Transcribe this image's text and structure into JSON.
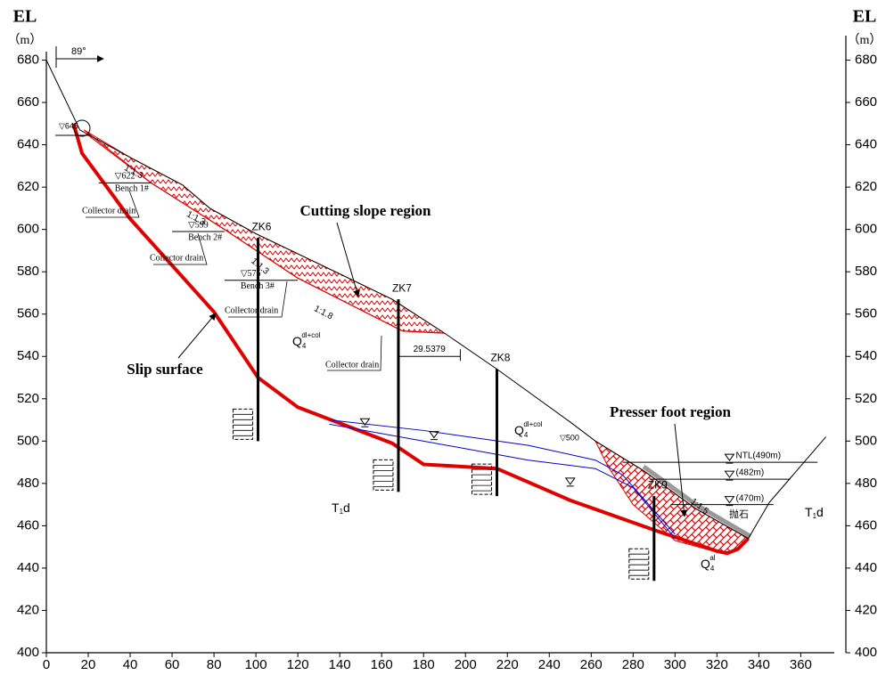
{
  "chart_data": {
    "type": "line",
    "y_label": "EL",
    "y_unit": "（m）",
    "xlim": [
      0,
      376
    ],
    "ylim": [
      400,
      684
    ],
    "xticks": [
      0,
      20,
      40,
      60,
      80,
      100,
      120,
      140,
      160,
      180,
      200,
      220,
      240,
      260,
      280,
      300,
      320,
      340,
      360
    ],
    "yticks": [
      400,
      420,
      440,
      460,
      480,
      500,
      520,
      540,
      560,
      580,
      600,
      620,
      640,
      660,
      680
    ],
    "series": [
      {
        "name": "Slip surface",
        "color": "#e00000",
        "x": [
          13,
          17,
          40,
          80,
          101,
          120,
          165,
          180,
          215,
          250,
          290,
          320,
          325,
          330,
          335
        ],
        "values": [
          650,
          636,
          605,
          561,
          530,
          516,
          499,
          489,
          487,
          472,
          458,
          448,
          447,
          449,
          454
        ]
      },
      {
        "color": "#000000",
        "x": [
          0,
          16,
          40,
          65,
          78,
          100,
          140,
          165,
          190,
          215,
          250,
          262,
          285,
          310,
          335,
          345,
          372
        ],
        "values": [
          680,
          647,
          634,
          621,
          610,
          598,
          579,
          567,
          551,
          534,
          509,
          500,
          486,
          468,
          454,
          471,
          502
        ]
      },
      {
        "color": "#0000cc",
        "x": [
          135,
          180,
          230,
          262,
          275,
          300
        ],
        "values": [
          510,
          505,
          498,
          491,
          484,
          456
        ]
      },
      {
        "color": "#0000cc",
        "x": [
          135,
          180,
          230,
          262,
          280,
          300
        ],
        "values": [
          508,
          500,
          491,
          487,
          478,
          454
        ]
      },
      {
        "color": "#e00000",
        "x": [
          18,
          50,
          85,
          120,
          170,
          190
        ],
        "values": [
          646,
          622,
          600,
          577,
          552,
          551
        ]
      }
    ],
    "regions": [
      {
        "name": "Cutting slope region",
        "color": "#e00000",
        "x": [
          18,
          40,
          65,
          78,
          100,
          140,
          165,
          190,
          170,
          120,
          85,
          50
        ],
        "values": [
          647,
          634,
          621,
          610,
          598,
          579,
          567,
          551,
          552,
          577,
          600,
          622
        ]
      },
      {
        "name": "Presser foot region",
        "color": "#e00000",
        "x": [
          262,
          285,
          310,
          335,
          330,
          322,
          300,
          280,
          268
        ],
        "values": [
          500,
          486,
          468,
          454,
          449,
          447,
          453,
          470,
          488
        ]
      }
    ],
    "boreholes": [
      {
        "label": "ZK6",
        "x": 101,
        "top": 596,
        "bottom": 500
      },
      {
        "label": "ZK7",
        "x": 168,
        "top": 567,
        "bottom": 476
      },
      {
        "label": "ZK8",
        "x": 215,
        "top": 534,
        "bottom": 474
      },
      {
        "label": "ZK9",
        "x": 290,
        "top": 474,
        "bottom": 434
      }
    ],
    "benches": [
      {
        "name": "Bench 1#",
        "elevation": {
          "value": 622,
          "label": "▽622"
        },
        "x": [
          25,
          50
        ]
      },
      {
        "name": "Bench 2#",
        "elevation": {
          "value": 599,
          "label": "▽599"
        },
        "x": [
          60,
          85
        ]
      },
      {
        "name": "Bench 3#",
        "elevation": {
          "value": 576,
          "label": "▽576"
        },
        "x": [
          85,
          120
        ]
      }
    ],
    "water_levels": [
      {
        "label": "NTL(490m)",
        "value": 490,
        "x": [
          275,
          368
        ]
      },
      {
        "label": "(482m)",
        "value": 482,
        "x": [
          288,
          355
        ]
      },
      {
        "label": "(470m)",
        "value": 470,
        "x": [
          298,
          347
        ]
      }
    ],
    "dimension": {
      "value": 29.5379,
      "x": 168,
      "y": 540
    },
    "annotations": [
      "Collector drain",
      "Collector drain",
      "Collector drain",
      "Collector drain",
      "1:1.3",
      "1:1.3",
      "1:1.3",
      "1:1.8",
      "1:1.5",
      "89°",
      "▽645",
      "▽500",
      "抛石"
    ],
    "strata": [
      {
        "base": "Q",
        "sub": "4",
        "sup": "dl+col"
      },
      {
        "base": "Q",
        "sub": "4",
        "sup": "dl+col"
      },
      {
        "base": "Q",
        "sub": "4",
        "sup": "al"
      },
      {
        "base": "T",
        "sub": "1",
        "tail": "d"
      },
      {
        "base": "T",
        "sub": "1",
        "tail": "d"
      }
    ]
  }
}
